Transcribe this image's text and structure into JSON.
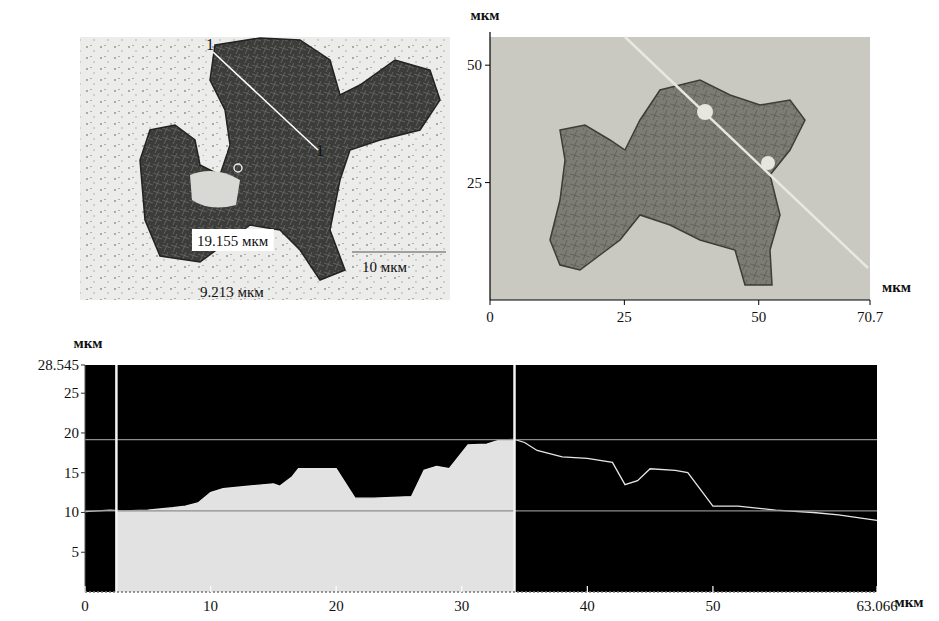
{
  "micrograph": {
    "profile_label_start": "1",
    "profile_label_end": "1",
    "measurement_width": "19.155 мкм",
    "measurement_height": "9.213 мкм",
    "scale_bar": "10 мкм"
  },
  "topography": {
    "y_label": "мкм",
    "x_label": "мкм",
    "xlim": [
      0,
      70.7
    ],
    "ylim": [
      0,
      56
    ],
    "xticks": [
      0,
      25,
      50,
      70.7
    ],
    "yticks": [
      25,
      50
    ]
  },
  "chart_data": {
    "type": "area",
    "x_label": "мкм",
    "y_label": "мкм",
    "x": [
      0,
      2,
      3,
      5,
      7,
      8,
      9,
      10,
      11,
      13,
      15,
      15.5,
      16.5,
      17,
      20,
      21.5,
      23,
      26,
      27,
      28,
      29,
      30.5,
      32,
      33,
      34.2,
      35,
      36,
      38,
      40,
      42,
      43,
      44,
      45,
      47,
      48,
      50,
      52,
      55,
      58,
      60,
      63.066
    ],
    "values": [
      10.1,
      10.3,
      10.2,
      10.3,
      10.6,
      10.8,
      11.2,
      12.5,
      13.0,
      13.3,
      13.6,
      13.3,
      14.5,
      15.5,
      15.5,
      11.8,
      11.8,
      12.0,
      15.3,
      15.8,
      15.5,
      18.5,
      18.6,
      19.1,
      19.2,
      18.8,
      17.8,
      17.0,
      16.8,
      16.3,
      13.5,
      14.0,
      15.5,
      15.3,
      15.0,
      10.8,
      10.8,
      10.3,
      10.0,
      9.7,
      9.0
    ],
    "xlim": [
      0,
      63.066
    ],
    "ylim": [
      0,
      28.545
    ],
    "xticks": [
      0,
      10,
      20,
      30,
      40,
      50,
      63.066
    ],
    "yticks": [
      5,
      10,
      15,
      20,
      25,
      28.545
    ],
    "cursors": [
      2.5,
      34.2
    ],
    "reference_lines": [
      19.155,
      10.2
    ],
    "grid": false
  }
}
